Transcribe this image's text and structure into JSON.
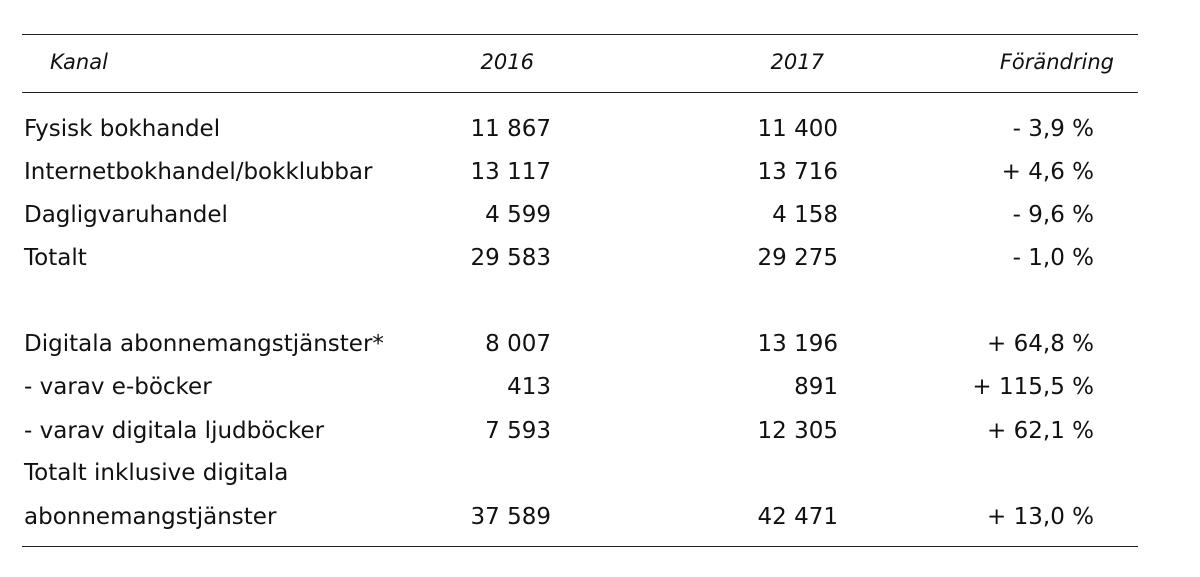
{
  "table": {
    "headers": {
      "channel": "Kanal",
      "year1": "2016",
      "year2": "2017",
      "change": "Förändring"
    },
    "rows": [
      {
        "label": "Fysisk bokhandel",
        "v2016": "11 867",
        "v2017": "11 400",
        "change": "- 3,9 %"
      },
      {
        "label": "Internetbokhandel/bokklubbar",
        "v2016": "13 117",
        "v2017": "13 716",
        "change": "+ 4,6 %"
      },
      {
        "label": "Dagligvaruhandel",
        "v2016": "4 599",
        "v2017": "4 158",
        "change": "- 9,6 %"
      },
      {
        "label": "Totalt",
        "v2016": "29 583",
        "v2017": "29 275",
        "change": "- 1,0 %"
      },
      {
        "label": "Digitala abonnemangstjänster*",
        "v2016": "8 007",
        "v2017": "13 196",
        "change": "+ 64,8 %"
      },
      {
        "label": "- varav e-böcker",
        "v2016": "413",
        "v2017": "891",
        "change": "+ 115,5 %"
      },
      {
        "label": "- varav digitala ljudböcker",
        "v2016": "7 593",
        "v2017": "12 305",
        "change": "+ 62,1 %"
      },
      {
        "label": "Totalt inklusive digitala",
        "v2016": "",
        "v2017": "",
        "change": ""
      },
      {
        "label": "abonnemangstjänster",
        "v2016": "37 589",
        "v2017": "42 471",
        "change": "+ 13,0 %"
      }
    ]
  }
}
